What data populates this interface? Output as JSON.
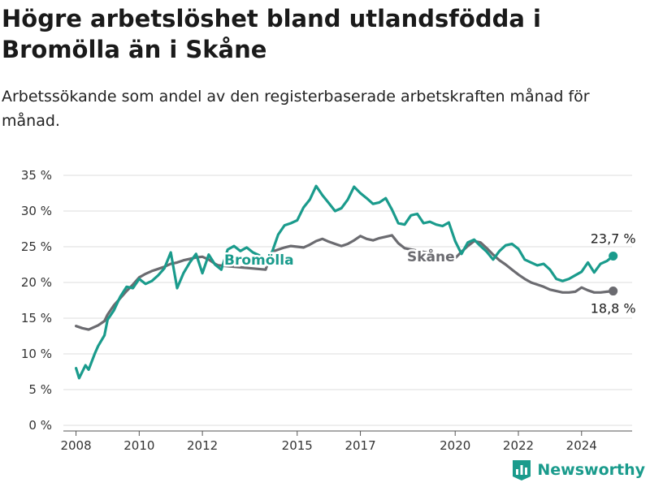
{
  "header": {
    "title": "Högre arbetslöshet bland utlandsfödda i Bromölla än i Skåne",
    "subtitle": "Arbetssökande som andel av den registerbaserade arbetskraften månad för månad."
  },
  "brand": {
    "name": "Newsworthy",
    "icon": "bar-chart-icon",
    "color": "#1a9b8c"
  },
  "chart_data": {
    "type": "line",
    "title": "Högre arbetslöshet bland utlandsfödda i Bromölla än i Skåne",
    "subtitle": "Arbetssökande som andel av den registerbaserade arbetskraften månad för månad.",
    "xlabel": "",
    "ylabel": "",
    "ylim": [
      0,
      35
    ],
    "xlim": [
      2007.6,
      2025.6
    ],
    "y_ticks": [
      0,
      5,
      10,
      15,
      20,
      25,
      30,
      35
    ],
    "y_tick_labels": [
      "0 %",
      "5 %",
      "10 %",
      "15 %",
      "20 %",
      "25 %",
      "30 %",
      "35 %"
    ],
    "x_ticks": [
      2008,
      2010,
      2012,
      2015,
      2017,
      2020,
      2022,
      2024
    ],
    "x_tick_labels": [
      "2008",
      "2010",
      "2012",
      "2015",
      "2017",
      "2020",
      "2022",
      "2024"
    ],
    "grid": "horizontal",
    "series": [
      {
        "name": "Skåne",
        "color": "#6b6b70",
        "end_label": "18,8 %",
        "x": [
          2008.0,
          2008.2,
          2008.4,
          2008.5,
          2008.7,
          2008.9,
          2009.0,
          2009.2,
          2009.4,
          2009.6,
          2009.8,
          2010.0,
          2010.2,
          2010.4,
          2010.6,
          2010.8,
          2011.0,
          2011.2,
          2011.4,
          2011.6,
          2011.8,
          2012.0,
          2012.2,
          2012.4,
          2012.5,
          2014.0,
          2014.2,
          2014.4,
          2014.6,
          2014.8,
          2015.0,
          2015.2,
          2015.4,
          2015.6,
          2015.8,
          2016.0,
          2016.2,
          2016.4,
          2016.6,
          2016.8,
          2017.0,
          2017.2,
          2017.4,
          2017.6,
          2017.8,
          2018.0,
          2018.2,
          2018.4,
          2020.0,
          2020.2,
          2020.4,
          2020.6,
          2020.8,
          2021.0,
          2021.2,
          2021.4,
          2021.6,
          2021.8,
          2022.0,
          2022.2,
          2022.4,
          2022.6,
          2022.8,
          2023.0,
          2023.2,
          2023.4,
          2023.6,
          2023.8,
          2024.0,
          2024.2,
          2024.4,
          2024.6,
          2024.8,
          2025.0
        ],
        "values": [
          13.9,
          13.6,
          13.4,
          13.6,
          14.0,
          14.6,
          15.5,
          16.8,
          17.8,
          18.8,
          19.7,
          20.7,
          21.2,
          21.6,
          21.9,
          22.2,
          22.6,
          22.8,
          23.1,
          23.3,
          23.5,
          23.6,
          23.2,
          22.6,
          22.4,
          21.8,
          24.3,
          24.6,
          24.9,
          25.1,
          25.0,
          24.9,
          25.3,
          25.8,
          26.1,
          25.7,
          25.4,
          25.1,
          25.4,
          25.9,
          26.5,
          26.1,
          25.9,
          26.2,
          26.4,
          26.6,
          25.5,
          24.8,
          23.4,
          24.3,
          25.1,
          25.8,
          25.6,
          24.8,
          23.9,
          23.1,
          22.5,
          21.8,
          21.1,
          20.5,
          20.0,
          19.7,
          19.4,
          19.0,
          18.8,
          18.6,
          18.6,
          18.7,
          19.3,
          18.9,
          18.6,
          18.6,
          18.7,
          18.8
        ]
      },
      {
        "name": "Bromölla",
        "color": "#1a9b8c",
        "end_label": "23,7 %",
        "x": [
          2008.0,
          2008.1,
          2008.3,
          2008.4,
          2008.6,
          2008.7,
          2008.9,
          2009.0,
          2009.2,
          2009.4,
          2009.6,
          2009.8,
          2010.0,
          2010.2,
          2010.4,
          2010.6,
          2010.8,
          2011.0,
          2011.2,
          2011.4,
          2011.6,
          2011.8,
          2012.0,
          2012.2,
          2012.4,
          2012.6,
          2012.8,
          2013.0,
          2013.2,
          2013.4,
          2013.6,
          2013.8,
          2014.0,
          2014.2,
          2014.4,
          2014.6,
          2014.8,
          2015.0,
          2015.2,
          2015.4,
          2015.6,
          2015.8,
          2016.0,
          2016.2,
          2016.4,
          2016.6,
          2016.8,
          2017.0,
          2017.2,
          2017.4,
          2017.6,
          2017.8,
          2018.0,
          2018.2,
          2018.4,
          2018.6,
          2018.8,
          2019.0,
          2019.2,
          2019.4,
          2019.6,
          2019.8,
          2020.0,
          2020.2,
          2020.4,
          2020.6,
          2020.8,
          2021.0,
          2021.2,
          2021.4,
          2021.6,
          2021.8,
          2022.0,
          2022.2,
          2022.4,
          2022.6,
          2022.8,
          2023.0,
          2023.2,
          2023.4,
          2023.6,
          2023.8,
          2024.0,
          2024.2,
          2024.4,
          2024.6,
          2024.8,
          2025.0
        ],
        "values": [
          8.0,
          6.6,
          8.4,
          7.8,
          10.1,
          11.1,
          12.6,
          14.8,
          16.1,
          18.0,
          19.4,
          19.2,
          20.5,
          19.8,
          20.2,
          21.0,
          22.0,
          24.2,
          19.2,
          21.3,
          22.8,
          24.0,
          21.3,
          23.9,
          22.5,
          21.8,
          24.6,
          25.1,
          24.4,
          24.9,
          24.2,
          23.8,
          23.1,
          24.2,
          26.7,
          28.0,
          28.3,
          28.7,
          30.5,
          31.6,
          33.5,
          32.2,
          31.1,
          30.0,
          30.4,
          31.6,
          33.4,
          32.5,
          31.8,
          31.0,
          31.2,
          31.8,
          30.2,
          28.3,
          28.1,
          29.4,
          29.6,
          28.3,
          28.5,
          28.1,
          27.9,
          28.4,
          25.8,
          24.0,
          25.6,
          26.0,
          25.1,
          24.3,
          23.2,
          24.4,
          25.2,
          25.4,
          24.7,
          23.2,
          22.8,
          22.4,
          22.6,
          21.8,
          20.5,
          20.2,
          20.5,
          21.0,
          21.5,
          22.8,
          21.4,
          22.6,
          23.0,
          23.7
        ]
      }
    ],
    "annotations": [
      {
        "text": "Bromölla",
        "series": "Bromölla"
      },
      {
        "text": "Skåne",
        "series": "Skåne"
      },
      {
        "text": "23,7 %",
        "series": "Bromölla",
        "position": "end"
      },
      {
        "text": "18,8 %",
        "series": "Skåne",
        "position": "end"
      }
    ],
    "legend": "none"
  }
}
